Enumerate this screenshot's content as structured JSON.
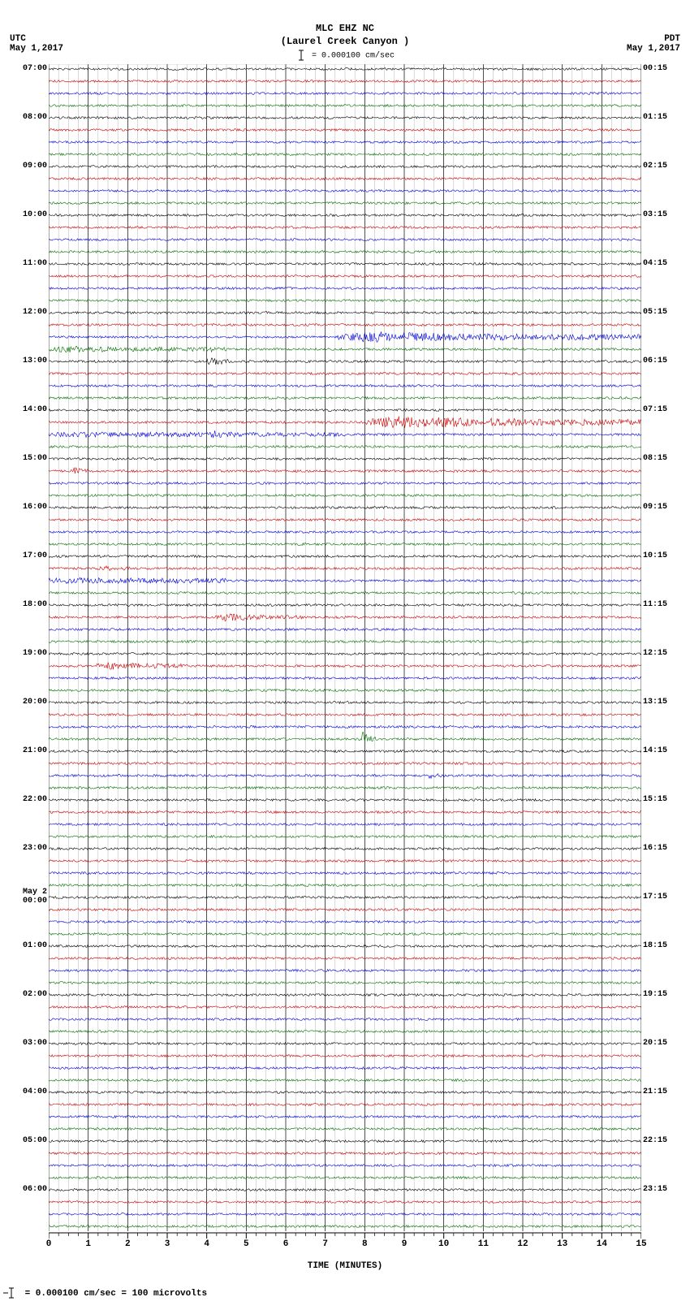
{
  "header": {
    "line1": "MLC EHZ NC",
    "line2": "(Laurel Creek Canyon )",
    "left_tz": "UTC",
    "left_date": "May 1,2017",
    "right_tz": "PDT",
    "right_date": "May 1,2017",
    "scale_text": "= 0.000100 cm/sec"
  },
  "footer": {
    "text": "= 0.000100 cm/sec =    100 microvolts"
  },
  "plot": {
    "type": "seismogram-helicorder",
    "background_color": "#ffffff",
    "grid_color_minor": "#a0a0a0",
    "grid_color_major": "#000000",
    "trace_line_width": 0.6,
    "noise_amplitude": 1.4,
    "x_minutes": 15,
    "x_major_step": 1,
    "x_minor_per_major": 4,
    "x_label": "TIME (MINUTES)",
    "trace_count": 96,
    "trace_colors_cycle": [
      "#000000",
      "#cc0000",
      "#0000dd",
      "#007000"
    ],
    "left_hour_labels": [
      {
        "i": 0,
        "text": "07:00"
      },
      {
        "i": 4,
        "text": "08:00"
      },
      {
        "i": 8,
        "text": "09:00"
      },
      {
        "i": 12,
        "text": "10:00"
      },
      {
        "i": 16,
        "text": "11:00"
      },
      {
        "i": 20,
        "text": "12:00"
      },
      {
        "i": 24,
        "text": "13:00"
      },
      {
        "i": 28,
        "text": "14:00"
      },
      {
        "i": 32,
        "text": "15:00"
      },
      {
        "i": 36,
        "text": "16:00"
      },
      {
        "i": 40,
        "text": "17:00"
      },
      {
        "i": 44,
        "text": "18:00"
      },
      {
        "i": 48,
        "text": "19:00"
      },
      {
        "i": 52,
        "text": "20:00"
      },
      {
        "i": 56,
        "text": "21:00"
      },
      {
        "i": 60,
        "text": "22:00"
      },
      {
        "i": 64,
        "text": "23:00"
      },
      {
        "i": 68,
        "text": "May 2\n00:00"
      },
      {
        "i": 72,
        "text": "01:00"
      },
      {
        "i": 76,
        "text": "02:00"
      },
      {
        "i": 80,
        "text": "03:00"
      },
      {
        "i": 84,
        "text": "04:00"
      },
      {
        "i": 88,
        "text": "05:00"
      },
      {
        "i": 92,
        "text": "06:00"
      }
    ],
    "right_hour_labels": [
      {
        "i": 0,
        "text": "00:15"
      },
      {
        "i": 4,
        "text": "01:15"
      },
      {
        "i": 8,
        "text": "02:15"
      },
      {
        "i": 12,
        "text": "03:15"
      },
      {
        "i": 16,
        "text": "04:15"
      },
      {
        "i": 20,
        "text": "05:15"
      },
      {
        "i": 24,
        "text": "06:15"
      },
      {
        "i": 28,
        "text": "07:15"
      },
      {
        "i": 32,
        "text": "08:15"
      },
      {
        "i": 36,
        "text": "09:15"
      },
      {
        "i": 40,
        "text": "10:15"
      },
      {
        "i": 44,
        "text": "11:15"
      },
      {
        "i": 48,
        "text": "12:15"
      },
      {
        "i": 52,
        "text": "13:15"
      },
      {
        "i": 56,
        "text": "14:15"
      },
      {
        "i": 60,
        "text": "15:15"
      },
      {
        "i": 64,
        "text": "16:15"
      },
      {
        "i": 68,
        "text": "17:15"
      },
      {
        "i": 72,
        "text": "18:15"
      },
      {
        "i": 76,
        "text": "19:15"
      },
      {
        "i": 80,
        "text": "20:15"
      },
      {
        "i": 84,
        "text": "21:15"
      },
      {
        "i": 88,
        "text": "22:15"
      },
      {
        "i": 92,
        "text": "23:15"
      }
    ],
    "events": [
      {
        "trace": 22,
        "start_min": 7.3,
        "end_min": 15.0,
        "peak_amp": 7,
        "tail_amp": 3
      },
      {
        "trace": 23,
        "start_min": 0.0,
        "end_min": 4.2,
        "peak_amp": 4,
        "tail_amp": 2.5
      },
      {
        "trace": 23,
        "start_min": 4.0,
        "end_min": 4.5,
        "peak_amp": 6,
        "tail_amp": 2
      },
      {
        "trace": 24,
        "start_min": 4.0,
        "end_min": 4.6,
        "peak_amp": 8,
        "tail_amp": 2
      },
      {
        "trace": 29,
        "start_min": 8.0,
        "end_min": 15.0,
        "peak_amp": 8,
        "tail_amp": 3.5
      },
      {
        "trace": 30,
        "start_min": 0.0,
        "end_min": 7.5,
        "peak_amp": 3.5,
        "tail_amp": 2.5
      },
      {
        "trace": 30,
        "start_min": 4.0,
        "end_min": 5.5,
        "peak_amp": 5,
        "tail_amp": 2
      },
      {
        "trace": 33,
        "start_min": 0.6,
        "end_min": 1.0,
        "peak_amp": 6,
        "tail_amp": 2
      },
      {
        "trace": 41,
        "start_min": 1.3,
        "end_min": 2.2,
        "peak_amp": 4,
        "tail_amp": 2
      },
      {
        "trace": 42,
        "start_min": 0.0,
        "end_min": 4.5,
        "peak_amp": 4,
        "tail_amp": 3
      },
      {
        "trace": 45,
        "start_min": 4.2,
        "end_min": 6.5,
        "peak_amp": 5,
        "tail_amp": 2
      },
      {
        "trace": 49,
        "start_min": 1.2,
        "end_min": 3.5,
        "peak_amp": 5,
        "tail_amp": 2.5
      },
      {
        "trace": 55,
        "start_min": 7.9,
        "end_min": 8.3,
        "peak_amp": 11,
        "tail_amp": 2
      },
      {
        "trace": 58,
        "start_min": 9.6,
        "end_min": 10.0,
        "peak_amp": 4,
        "tail_amp": 2
      }
    ]
  }
}
